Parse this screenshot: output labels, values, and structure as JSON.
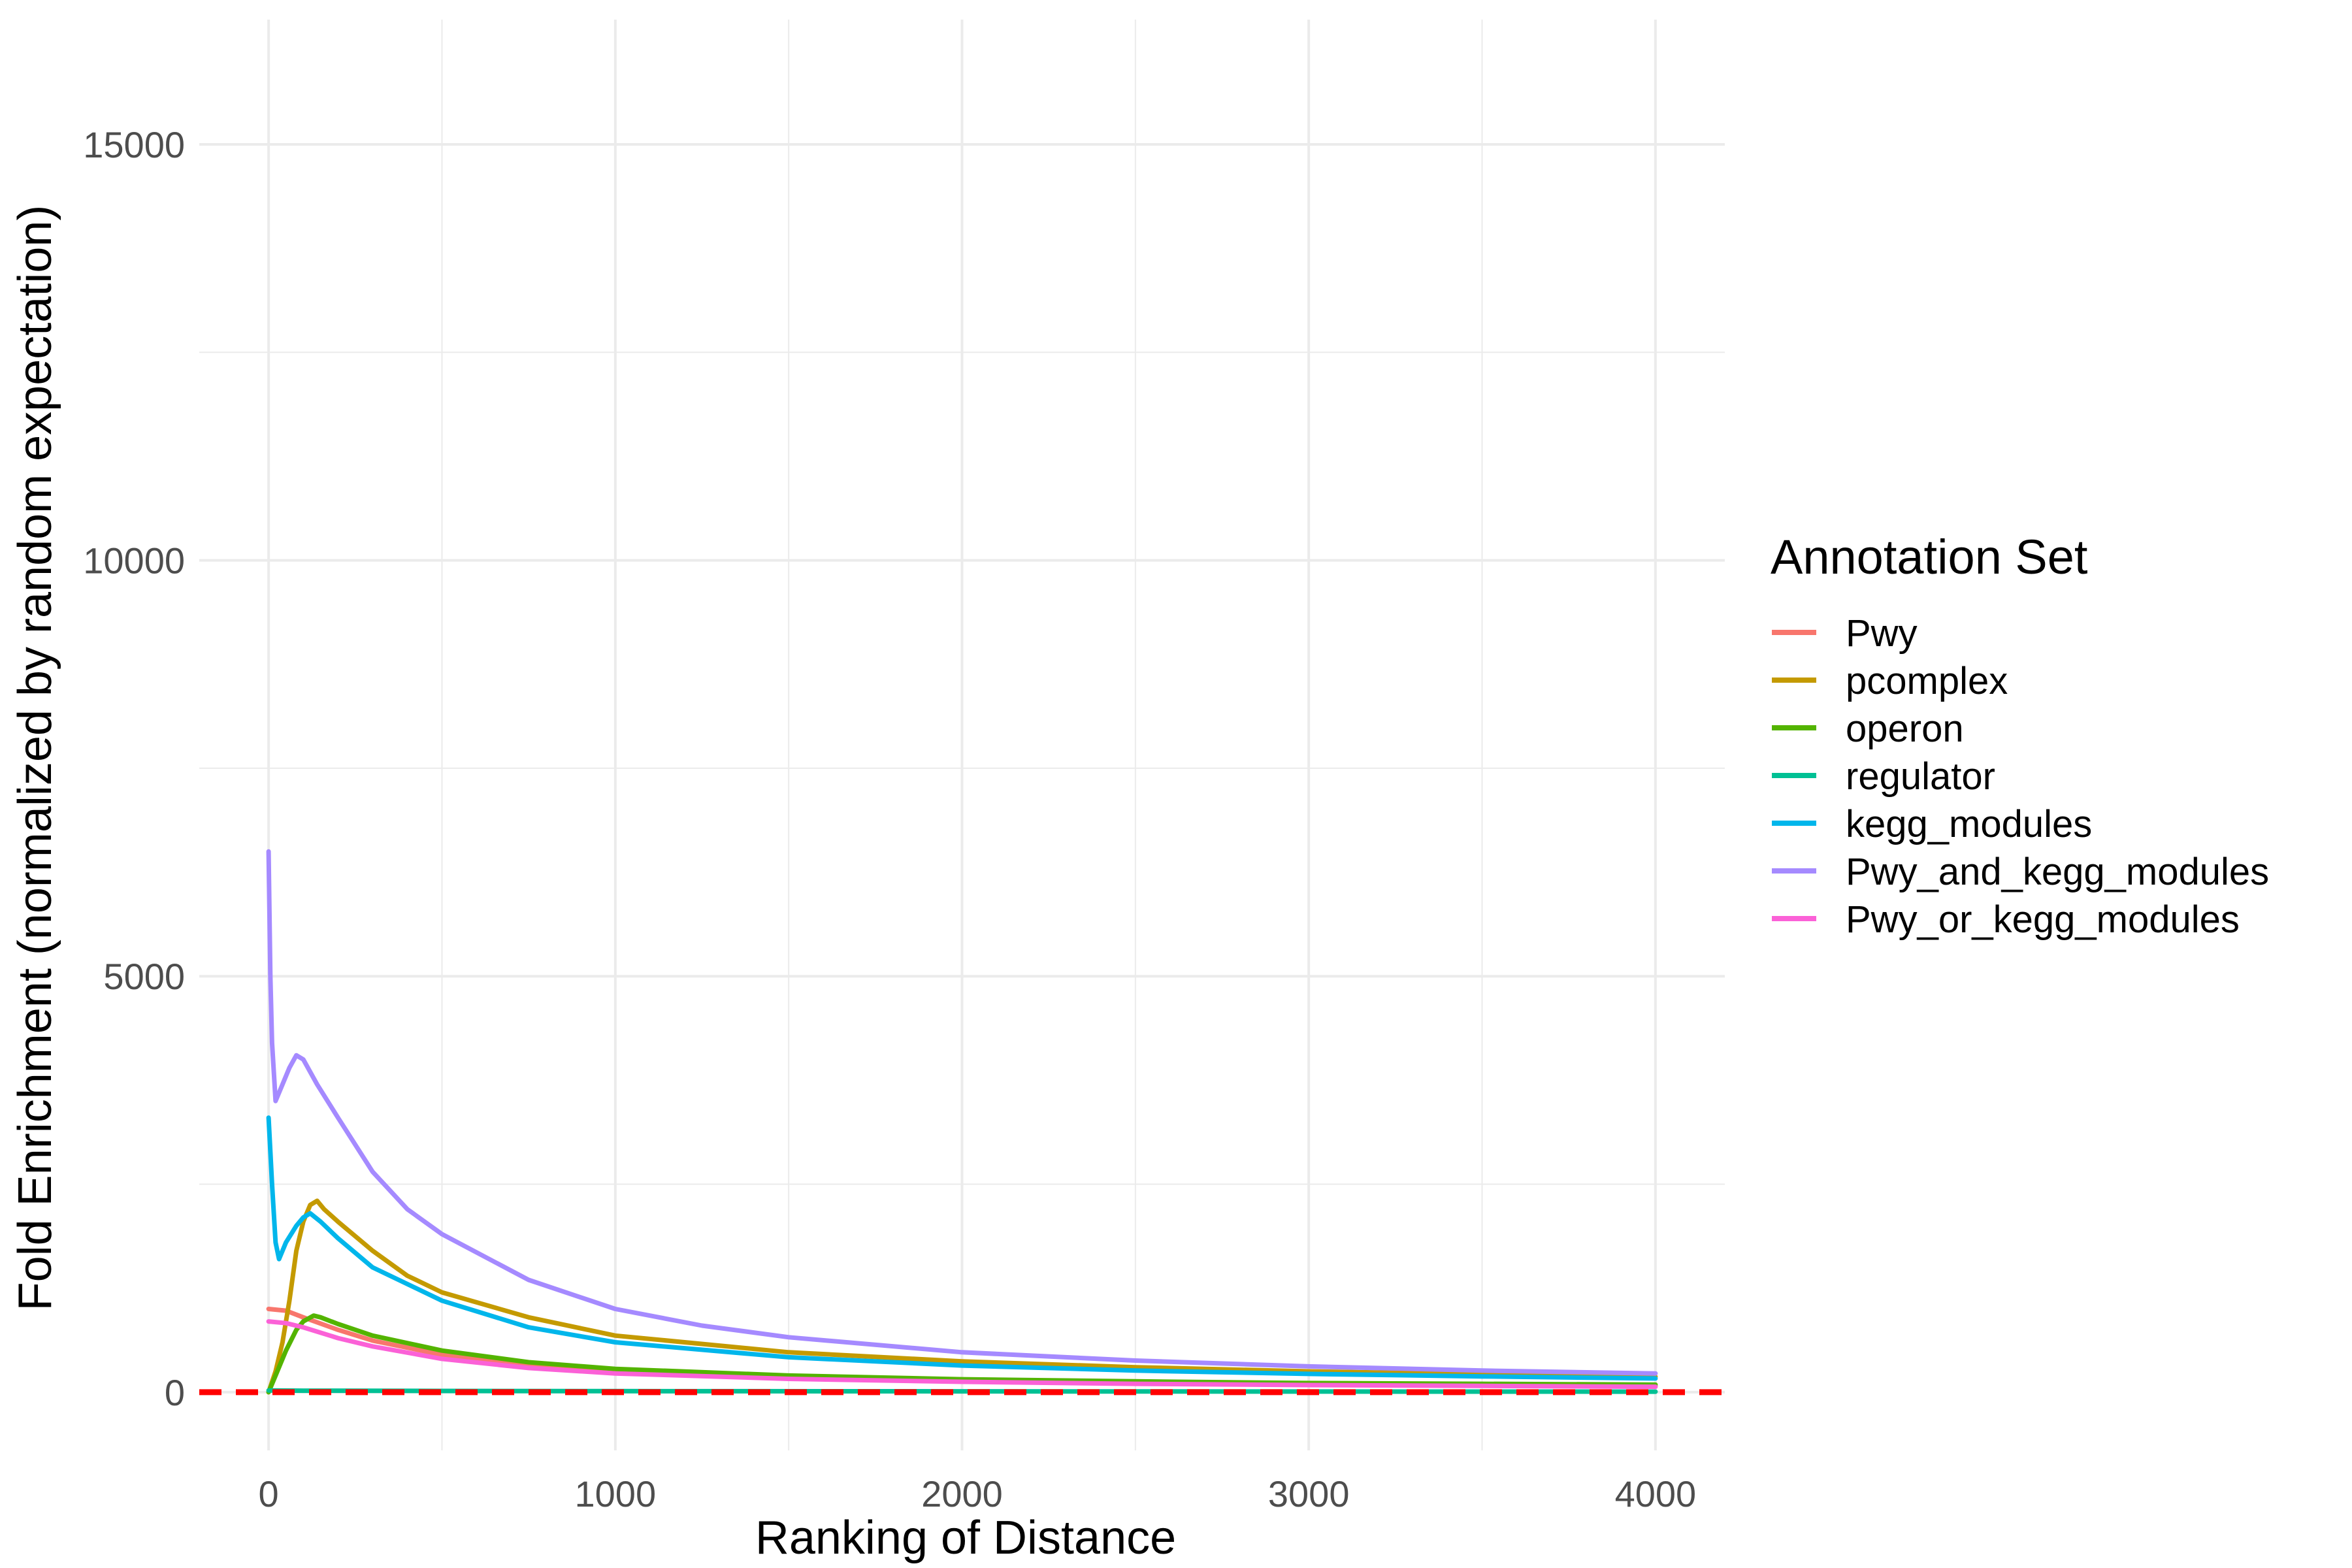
{
  "chart_data": {
    "type": "line",
    "xlabel": "Ranking of Distance",
    "ylabel": "Fold Enrichment (normalized by random expectation)",
    "xlim": [
      -200,
      4200
    ],
    "ylim": [
      -700,
      16500
    ],
    "x_ticks": [
      0,
      1000,
      2000,
      3000,
      4000
    ],
    "y_ticks": [
      0,
      5000,
      10000,
      15000
    ],
    "x_tick_labels": [
      "0",
      "1000",
      "2000",
      "3000",
      "4000"
    ],
    "y_tick_labels": [
      "0",
      "5000",
      "10000",
      "15000"
    ],
    "grid": true,
    "legend": {
      "title": "Annotation Set",
      "position": "right"
    },
    "reference_line": {
      "y": 0,
      "color": "#ff0000",
      "style": "dashed"
    },
    "series": [
      {
        "name": "Pwy",
        "color": "#F8766D",
        "points": [
          [
            0,
            1000
          ],
          [
            50,
            980
          ],
          [
            100,
            900
          ],
          [
            200,
            750
          ],
          [
            300,
            620
          ],
          [
            500,
            450
          ],
          [
            750,
            320
          ],
          [
            1000,
            250
          ],
          [
            1500,
            175
          ],
          [
            2000,
            135
          ],
          [
            2500,
            110
          ],
          [
            3000,
            95
          ],
          [
            3500,
            85
          ],
          [
            4000,
            75
          ]
        ]
      },
      {
        "name": "pcomplex",
        "color": "#C49A00",
        "points": [
          [
            0,
            0
          ],
          [
            20,
            250
          ],
          [
            40,
            600
          ],
          [
            60,
            1100
          ],
          [
            80,
            1700
          ],
          [
            100,
            2050
          ],
          [
            120,
            2250
          ],
          [
            140,
            2300
          ],
          [
            160,
            2200
          ],
          [
            200,
            2050
          ],
          [
            300,
            1700
          ],
          [
            400,
            1400
          ],
          [
            500,
            1200
          ],
          [
            750,
            900
          ],
          [
            1000,
            680
          ],
          [
            1500,
            480
          ],
          [
            2000,
            370
          ],
          [
            2500,
            300
          ],
          [
            3000,
            250
          ],
          [
            3500,
            215
          ],
          [
            4000,
            185
          ]
        ]
      },
      {
        "name": "operon",
        "color": "#53B400",
        "points": [
          [
            0,
            0
          ],
          [
            20,
            200
          ],
          [
            50,
            500
          ],
          [
            80,
            750
          ],
          [
            100,
            850
          ],
          [
            130,
            920
          ],
          [
            150,
            900
          ],
          [
            200,
            820
          ],
          [
            300,
            680
          ],
          [
            500,
            500
          ],
          [
            750,
            360
          ],
          [
            1000,
            280
          ],
          [
            1500,
            200
          ],
          [
            2000,
            155
          ],
          [
            2500,
            130
          ],
          [
            3000,
            110
          ],
          [
            3500,
            100
          ],
          [
            4000,
            90
          ]
        ]
      },
      {
        "name": "regulator",
        "color": "#00C094",
        "points": [
          [
            0,
            20
          ],
          [
            100,
            18
          ],
          [
            500,
            15
          ],
          [
            1000,
            12
          ],
          [
            2000,
            10
          ],
          [
            3000,
            8
          ],
          [
            4000,
            6
          ]
        ]
      },
      {
        "name": "kegg_modules",
        "color": "#00B6EB",
        "points": [
          [
            0,
            3300
          ],
          [
            10,
            2500
          ],
          [
            20,
            1800
          ],
          [
            30,
            1600
          ],
          [
            50,
            1800
          ],
          [
            80,
            2000
          ],
          [
            100,
            2100
          ],
          [
            120,
            2150
          ],
          [
            150,
            2050
          ],
          [
            200,
            1850
          ],
          [
            300,
            1500
          ],
          [
            500,
            1100
          ],
          [
            750,
            780
          ],
          [
            1000,
            600
          ],
          [
            1500,
            420
          ],
          [
            2000,
            320
          ],
          [
            2500,
            260
          ],
          [
            3000,
            220
          ],
          [
            3500,
            190
          ],
          [
            4000,
            165
          ]
        ]
      },
      {
        "name": "Pwy_and_kegg_modules",
        "color": "#A58AFF",
        "points": [
          [
            0,
            6500
          ],
          [
            5,
            5000
          ],
          [
            10,
            4200
          ],
          [
            20,
            3500
          ],
          [
            40,
            3700
          ],
          [
            60,
            3900
          ],
          [
            80,
            4050
          ],
          [
            100,
            4000
          ],
          [
            140,
            3700
          ],
          [
            200,
            3300
          ],
          [
            300,
            2650
          ],
          [
            400,
            2200
          ],
          [
            500,
            1900
          ],
          [
            750,
            1350
          ],
          [
            1000,
            1000
          ],
          [
            1250,
            800
          ],
          [
            1500,
            660
          ],
          [
            2000,
            480
          ],
          [
            2500,
            380
          ],
          [
            3000,
            310
          ],
          [
            3500,
            260
          ],
          [
            4000,
            225
          ]
        ]
      },
      {
        "name": "Pwy_or_kegg_modules",
        "color": "#FB61D7",
        "points": [
          [
            0,
            850
          ],
          [
            50,
            830
          ],
          [
            100,
            780
          ],
          [
            200,
            650
          ],
          [
            300,
            550
          ],
          [
            500,
            400
          ],
          [
            750,
            290
          ],
          [
            1000,
            225
          ],
          [
            1500,
            160
          ],
          [
            2000,
            125
          ],
          [
            2500,
            100
          ],
          [
            3000,
            85
          ],
          [
            3500,
            75
          ],
          [
            4000,
            65
          ]
        ]
      }
    ]
  }
}
